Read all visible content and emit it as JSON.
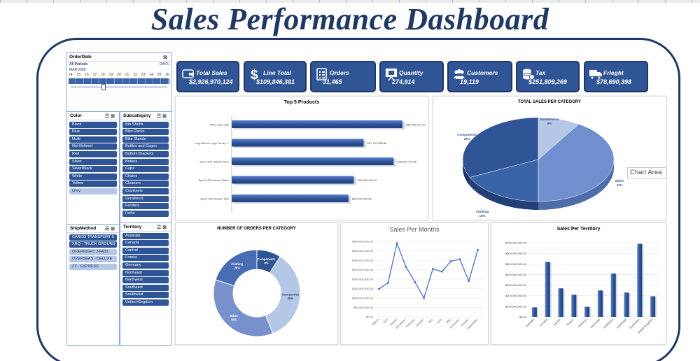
{
  "title": "Sales Performance Dashboard",
  "slicers": {
    "orderdate": {
      "header": "OrderDate",
      "period": "All Periods",
      "level": "DAYS",
      "month": "MAR 2006",
      "days": [
        "14",
        "15",
        "16",
        "17",
        "18",
        "19",
        "20",
        "21",
        "22",
        "23",
        "24",
        "25",
        "26"
      ]
    },
    "color": {
      "header": "Color",
      "items": [
        "Black",
        "Blue",
        "Multi",
        "Not Defined",
        "Red",
        "Silver",
        "Silver/Black",
        "White",
        "Yellow",
        "Grey"
      ]
    },
    "subcategory": {
      "header": "Subcategory",
      "items": [
        "Bib-Shorts",
        "Bike Racks",
        "Bike Stands",
        "Bottles and Cages",
        "Bottom Brackets",
        "Brakes",
        "Caps",
        "Chains",
        "Cleaners",
        "Cranksets",
        "Derailleurs",
        "Fenders",
        "Forks"
      ]
    },
    "shipmethod": {
      "header": "ShipMethod",
      "items": [
        "CARGO TRANSPORT 5",
        "XRQ - TRUCK GROUND",
        "OVERNIGHT J-FAST",
        "OVERSEAS - DELUXE",
        "ZY - EXPRESS"
      ]
    },
    "territory": {
      "header": "Territory",
      "items": [
        "Australia",
        "Canada",
        "Central",
        "France",
        "Germany",
        "Northeast",
        "Northwest",
        "Southeast",
        "Southwest",
        "United Kingdom"
      ]
    }
  },
  "kpis": [
    {
      "label": "Total Sales",
      "value": "$2,926,970,124",
      "icon": "wallet-icon"
    },
    {
      "label": "Line Total",
      "value": "$109,846,381",
      "icon": "dollar-icon"
    },
    {
      "label": "Orders",
      "value": "31,465",
      "icon": "clipboard-icon"
    },
    {
      "label": "Quantity",
      "value": "274,914",
      "icon": "presentation-icon"
    },
    {
      "label": "Customers",
      "value": "19,119",
      "icon": "people-icon"
    },
    {
      "label": "Tax",
      "value": "$251,809,269",
      "icon": "coins-icon"
    },
    {
      "label": "Frieght",
      "value": "$78,690,398",
      "icon": "truck-icon"
    }
  ],
  "tooltip": "Chart Area",
  "chart_data": [
    {
      "type": "bar",
      "title": "Top 5 Products",
      "orientation": "horizontal",
      "categories": [
        "AWC Logo Cap",
        "Long-Sleeve Logo Jersey, L",
        "Sport-100 Helmet, Blue",
        "Sport-100 Helmet, Black",
        "Sport-100 Helmet, Red"
      ],
      "values": [
        48786373.9,
        37707858.8,
        46254779.8,
        34908448.4,
        33370255.96
      ],
      "data_labels": [
        "$48,786,373.90",
        "$37,707,858.80",
        "$46,254,779.80",
        "$34,908,448.40",
        "$33,370,255.96"
      ],
      "grid": false
    },
    {
      "type": "pie",
      "title": "TOTAL SALES PER CATEGORY",
      "categories": [
        "Accessories",
        "Bikes",
        "Clothing",
        "Components"
      ],
      "values": [
        9,
        41,
        18,
        32
      ],
      "labels": [
        "Accessories\n9%",
        "Bikes\n41%",
        "Clothing\n18%",
        "Components\n32%"
      ],
      "colors": [
        "#b4c7e7",
        "#6f8fcf",
        "#3a63a8",
        "#2f5597"
      ]
    },
    {
      "type": "pie",
      "style": "doughnut",
      "title": "NUMBER OF ORDERS PER CATEGORY",
      "categories": [
        "Components",
        "Accessories",
        "Bikes",
        "Clothing"
      ],
      "values": [
        9,
        35,
        36,
        20
      ],
      "labels": [
        "Components\n9%",
        "Accessories\n35%",
        "Bikes\n36%",
        "Clothing\n20%"
      ],
      "colors": [
        "#2f5597",
        "#b4c7e7",
        "#7891cd",
        "#4a6cb5"
      ]
    },
    {
      "type": "line",
      "title": "Sales Per Months",
      "categories": [
        "March",
        "April",
        "August",
        "December",
        "February",
        "January",
        "July",
        "June",
        "May",
        "November",
        "October",
        "September"
      ],
      "values": [
        148000000,
        180000000,
        390000000,
        265000000,
        185000000,
        100000000,
        255000000,
        240000000,
        295000000,
        305000000,
        190000000,
        355000000
      ],
      "yticks": [
        "$0.00",
        "$50,000,000.00",
        "$100,000,000.00",
        "$150,000,000.00",
        "$200,000,000.00",
        "$250,000,000.00",
        "$300,000,000.00",
        "$350,000,000.00",
        "$400,000,000.00"
      ],
      "ylim": [
        0,
        400000000
      ],
      "grid": true
    },
    {
      "type": "bar",
      "title": "Sales Per Territory",
      "categories": [
        "Australia",
        "Canada",
        "Central",
        "France",
        "Germany",
        "Northeast",
        "Northwest",
        "Southeast",
        "Southwest",
        "United Kingdom"
      ],
      "values": [
        90000000,
        520000000,
        270000000,
        210000000,
        95000000,
        250000000,
        410000000,
        230000000,
        690000000,
        195000000
      ],
      "yticks": [
        "$0.00",
        "$100,000,000.00",
        "$200,000,000.00",
        "$300,000,000.00",
        "$400,000,000.00",
        "$500,000,000.00",
        "$600,000,000.00",
        "$700,000,000.00"
      ],
      "ylim": [
        0,
        700000000
      ],
      "grid": true
    }
  ]
}
